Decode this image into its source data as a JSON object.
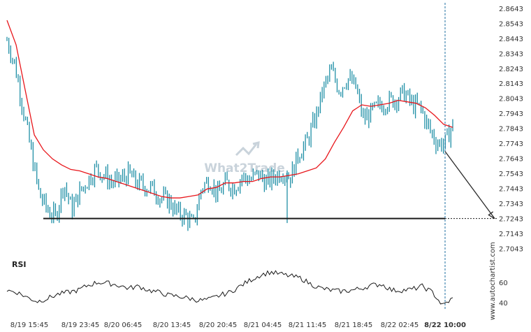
{
  "chart_data": [
    {
      "type": "line",
      "name": "price",
      "y_ticks": [
        "2.8643",
        "2.8543",
        "2.8443",
        "2.8343",
        "2.8243",
        "2.8143",
        "2.8043",
        "2.7943",
        "2.7843",
        "2.7743",
        "2.7643",
        "2.7543",
        "2.7443",
        "2.7343",
        "2.7243",
        "2.7143",
        "2.7043"
      ],
      "ylim": [
        2.7004,
        2.867
      ],
      "x_ticks": [
        "8/19 15:45",
        "8/19 23:45",
        "8/20 06:45",
        "8/20 13:45",
        "8/20 20:45",
        "8/21 04:45",
        "8/21 11:45",
        "8/21 18:45",
        "8/22 02:45",
        "8/22 10:00"
      ],
      "support_level": 2.7243,
      "price_series": [
        2.843,
        2.826,
        2.797,
        2.768,
        2.74,
        2.73,
        2.725,
        2.748,
        2.73,
        2.742,
        2.75,
        2.758,
        2.753,
        2.748,
        2.75,
        2.754,
        2.748,
        2.746,
        2.744,
        2.738,
        2.736,
        2.728,
        2.726,
        2.72,
        2.745,
        2.75,
        2.74,
        2.748,
        2.745,
        2.752,
        2.75,
        2.754,
        2.748,
        2.752,
        2.756,
        2.752,
        2.768,
        2.775,
        2.79,
        2.81,
        2.823,
        2.81,
        2.818,
        2.812,
        2.79,
        2.795,
        2.8,
        2.802,
        2.804,
        2.808,
        2.8,
        2.798,
        2.785,
        2.775,
        2.774,
        2.787
      ],
      "moving_average": [
        2.8563,
        2.84,
        2.81,
        2.78,
        2.77,
        2.764,
        2.76,
        2.757,
        2.756,
        2.754,
        2.752,
        2.751,
        2.749,
        2.747,
        2.745,
        2.743,
        2.741,
        2.739,
        2.738,
        2.738,
        2.739,
        2.74,
        2.744,
        2.745,
        2.748,
        2.748,
        2.749,
        2.749,
        2.751,
        2.752,
        2.752,
        2.753,
        2.754,
        2.756,
        2.758,
        2.764,
        2.775,
        2.785,
        2.796,
        2.8,
        2.799,
        2.8,
        2.801,
        2.803,
        2.802,
        2.801,
        2.798,
        2.793,
        2.787,
        2.785
      ]
    },
    {
      "type": "line",
      "name": "RSI",
      "y_ticks": [
        "60",
        "40"
      ],
      "ylim": [
        35,
        75
      ],
      "values": [
        52,
        50,
        45,
        41,
        44,
        48,
        50,
        52,
        57,
        60,
        59,
        57,
        54,
        56,
        52,
        50,
        47,
        46,
        44,
        42,
        43,
        47,
        50,
        56,
        62,
        67,
        70,
        68,
        66,
        64,
        58,
        54,
        52,
        51,
        52,
        54,
        57,
        58,
        52,
        52,
        53,
        56,
        50,
        37,
        44
      ]
    }
  ],
  "panel": {
    "rsi_label": "RSI",
    "watermark_brand": "What2Trade",
    "side_brand": "www.autochartist.com"
  },
  "colors": {
    "candle": "#1f8fa6",
    "moving_average": "#e8161b",
    "support_line": "#1a1a1a",
    "rsi_line": "#1a1a1a",
    "forecast_arrow": "#2a2a2a",
    "divider": "#1f6fa0"
  }
}
